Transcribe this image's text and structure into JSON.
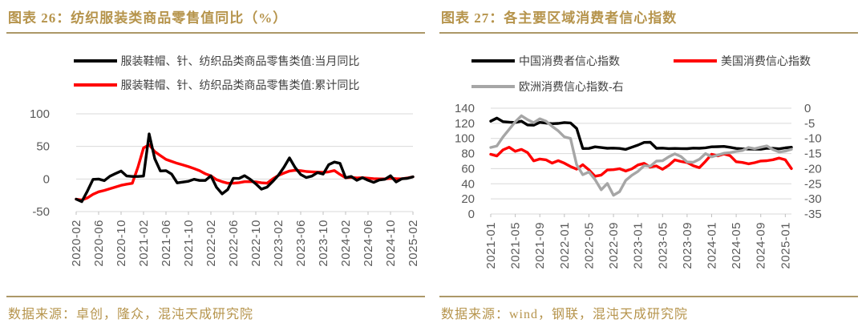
{
  "page": {
    "accent_gold_text": "#B6944C",
    "accent_gold_rule": "#AC9868",
    "grid_color": "#D9D9D9",
    "axis_text_color": "#595959"
  },
  "chart_data": [
    {
      "type": "line",
      "title": "图表 26：纺织服装类商品零售值同比（%）",
      "source": "数据来源：卓创，隆众，混沌天成研究院",
      "grid": true,
      "legend_position": "top",
      "x_start": "2020-02",
      "x_tick_labels": [
        "2020-02",
        "2020-06",
        "2020-10",
        "2021-02",
        "2021-06",
        "2021-10",
        "2022-02",
        "2022-06",
        "2022-10",
        "2023-02",
        "2023-06",
        "2023-10",
        "2024-02",
        "2024-06",
        "2024-10",
        "2025-02"
      ],
      "tick_every": 4,
      "ylim": [
        -50,
        100
      ],
      "yticks": [
        100,
        50,
        0,
        -50
      ],
      "series": [
        {
          "name": "服装鞋帽、针、纺织品类商品零售类值:当月同比",
          "color": "#000000",
          "axis": "left",
          "values": [
            -30.9,
            -34.8,
            -18.5,
            -0.6,
            -0.1,
            -2.5,
            4.2,
            8.3,
            12.2,
            4.6,
            3.8,
            3.8,
            4.5,
            69.1,
            31.2,
            12.3,
            12.8,
            7.5,
            -6.0,
            -4.8,
            -3.5,
            -0.5,
            -2.3,
            -2.3,
            4.8,
            -12.7,
            -22.8,
            -16.2,
            1.2,
            0.8,
            5.1,
            -0.5,
            -7.5,
            -15.6,
            -12.5,
            -4.0,
            5.4,
            17.7,
            32.4,
            17.6,
            6.9,
            2.3,
            4.5,
            9.9,
            7.5,
            22.0,
            26.0,
            24.0,
            1.9,
            3.8,
            -2.0,
            2.0,
            -1.9,
            -5.2,
            -1.6,
            -0.4,
            5.0,
            -4.5,
            0.3,
            1.0,
            3.3
          ]
        },
        {
          "name": "服装鞋帽、针、纺织品类商品零售类值:累计同比",
          "color": "#FF0000",
          "axis": "left",
          "values": [
            -30.9,
            -32.2,
            -29.0,
            -23.5,
            -19.6,
            -17.5,
            -15.0,
            -12.4,
            -9.7,
            -7.9,
            -6.6,
            18.0,
            47.6,
            52.5,
            42.0,
            36.0,
            30.0,
            27.0,
            24.0,
            21.5,
            19.0,
            16.0,
            12.7,
            8.0,
            4.8,
            -0.9,
            -4.2,
            -6.5,
            -6.5,
            -5.6,
            -4.2,
            -4.0,
            -4.4,
            -5.9,
            -6.5,
            0.0,
            5.4,
            9.0,
            12.2,
            13.5,
            12.8,
            11.5,
            11.0,
            10.6,
            10.2,
            11.0,
            12.9,
            7.0,
            1.9,
            2.5,
            1.5,
            2.0,
            1.3,
            0.5,
            0.2,
            0.2,
            1.0,
            0.4,
            0.3,
            1.5,
            3.3
          ]
        }
      ]
    },
    {
      "type": "line",
      "title": "图表 27：各主要区域消费者信心指数",
      "source": "数据来源：wind，钢联，混沌天成研究院",
      "grid": true,
      "legend_position": "top",
      "x_start": "2021-01",
      "x_tick_labels": [
        "2021-01",
        "2021-05",
        "2021-09",
        "2022-01",
        "2022-05",
        "2022-09",
        "2023-01",
        "2023-05",
        "2023-09",
        "2024-01",
        "2024-05",
        "2024-09",
        "2025-01"
      ],
      "tick_every": 4,
      "ylim_left": [
        0,
        140
      ],
      "yticks_left": [
        140,
        120,
        100,
        80,
        60,
        40,
        20,
        0
      ],
      "ylim_right": [
        -35,
        0
      ],
      "yticks_right": [
        0,
        -5,
        -10,
        -15,
        -20,
        -25,
        -30,
        -35
      ],
      "series": [
        {
          "name": "中国消费者信心指数",
          "color": "#000000",
          "axis": "left",
          "values": [
            122.8,
            127.0,
            122.2,
            121.5,
            121.1,
            122.8,
            117.8,
            117.5,
            121.2,
            120.3,
            119.5,
            119.8,
            121.0,
            120.5,
            113.2,
            86.7,
            86.8,
            88.9,
            87.9,
            87.0,
            87.2,
            86.8,
            85.5,
            88.3,
            91.2,
            94.7,
            94.9,
            87.0,
            87.2,
            86.5,
            86.8,
            86.5,
            86.4,
            87.2,
            87.0,
            87.6,
            88.9,
            89.1,
            89.4,
            88.2,
            86.8,
            86.2,
            86.0,
            85.8,
            85.7,
            87.0,
            86.9,
            86.2,
            87.5,
            88.4
          ]
        },
        {
          "name": "美国消费信心指数",
          "color": "#FF0000",
          "axis": "left",
          "values": [
            79.0,
            76.8,
            84.9,
            88.3,
            82.9,
            85.5,
            81.2,
            70.3,
            72.8,
            71.7,
            67.4,
            70.6,
            67.2,
            62.8,
            59.4,
            65.2,
            58.4,
            50.0,
            51.5,
            58.2,
            58.6,
            59.9,
            56.8,
            59.7,
            64.9,
            67.0,
            62.0,
            63.5,
            59.2,
            64.4,
            71.6,
            69.5,
            68.1,
            63.8,
            61.3,
            69.7,
            79.0,
            76.9,
            79.4,
            77.2,
            69.1,
            68.2,
            66.4,
            67.9,
            70.1,
            70.5,
            71.8,
            74.0,
            71.7,
            60.0
          ]
        },
        {
          "name": "欧洲消费信心指数-右",
          "color": "#A6A6A6",
          "axis": "right",
          "values": [
            -13.0,
            -12.5,
            -9.5,
            -7.0,
            -4.5,
            -2.5,
            -3.8,
            -4.8,
            -3.5,
            -4.3,
            -6.0,
            -7.5,
            -9.5,
            -10.0,
            -18.7,
            -22.0,
            -21.1,
            -23.6,
            -27.0,
            -24.9,
            -28.8,
            -27.6,
            -23.9,
            -22.2,
            -20.9,
            -19.0,
            -19.2,
            -17.5,
            -17.4,
            -16.1,
            -15.1,
            -16.0,
            -17.8,
            -17.9,
            -16.9,
            -15.0,
            -16.1,
            -15.5,
            -14.9,
            -14.7,
            -14.3,
            -14.0,
            -13.0,
            -13.4,
            -12.9,
            -12.5,
            -13.7,
            -14.5,
            -14.2,
            -13.6
          ]
        }
      ]
    }
  ]
}
